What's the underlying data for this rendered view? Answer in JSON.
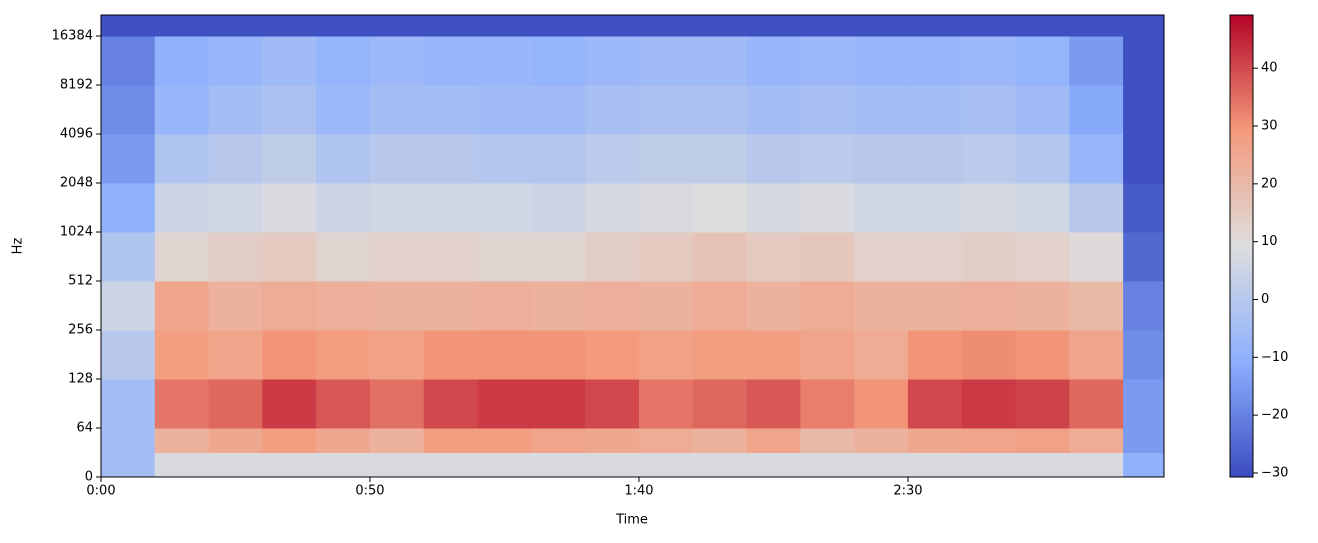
{
  "chart_data": {
    "type": "heatmap",
    "xlabel": "Time",
    "ylabel": "Hz",
    "colormap": "coolwarm",
    "yscale": "symlog",
    "linthresh": 64,
    "xlim": [
      0,
      197.6
    ],
    "ylim": [
      0,
      22050
    ],
    "clim": [
      -30.7,
      49.2
    ],
    "xticks": [
      {
        "value": 0,
        "label": "0:00"
      },
      {
        "value": 50,
        "label": "0:50"
      },
      {
        "value": 100,
        "label": "1:40"
      },
      {
        "value": 150,
        "label": "2:30"
      }
    ],
    "yticks": [
      0,
      64,
      128,
      256,
      512,
      1024,
      2048,
      4096,
      8192,
      16384
    ],
    "cticks": [
      {
        "value": -30,
        "label": "−30"
      },
      {
        "value": -20,
        "label": "−20"
      },
      {
        "value": -10,
        "label": "−10"
      },
      0,
      10,
      20,
      30,
      40
    ],
    "x_edges": [
      0,
      10,
      20,
      30,
      40,
      50,
      60,
      70,
      80,
      90,
      100,
      110,
      120,
      130,
      140,
      150,
      160,
      170,
      180,
      190,
      197.6
    ],
    "y_edges": [
      0,
      32,
      64,
      128,
      256,
      512,
      1024,
      2048,
      4096,
      8192,
      16384,
      22050
    ],
    "z": [
      [
        -5,
        8,
        8,
        8,
        8,
        8,
        8,
        8,
        8,
        8,
        8,
        8,
        8,
        8,
        8,
        8,
        8,
        8,
        8,
        -10
      ],
      [
        -5,
        22,
        25,
        28,
        25,
        22,
        28,
        28,
        26,
        25,
        24,
        22,
        26,
        20,
        22,
        25,
        26,
        27,
        24,
        -15
      ],
      [
        -5,
        34,
        36,
        42,
        38,
        35,
        40,
        42,
        42,
        40,
        34,
        36,
        38,
        33,
        30,
        40,
        42,
        41,
        36,
        -15
      ],
      [
        0,
        28,
        26,
        30,
        28,
        27,
        30,
        30,
        30,
        29,
        27,
        28,
        28,
        26,
        24,
        30,
        31,
        30,
        26,
        -18
      ],
      [
        5,
        26,
        22,
        24,
        23,
        22,
        22,
        23,
        22,
        23,
        22,
        24,
        22,
        24,
        22,
        22,
        23,
        22,
        20,
        -20
      ],
      [
        -2,
        12,
        14,
        15,
        12,
        13,
        13,
        12,
        12,
        14,
        15,
        17,
        15,
        16,
        13,
        13,
        14,
        13,
        10,
        -25
      ],
      [
        -10,
        5,
        6,
        8,
        5,
        6,
        6,
        6,
        5,
        7,
        8,
        9,
        7,
        8,
        6,
        6,
        7,
        6,
        0,
        -28
      ],
      [
        -15,
        -2,
        0,
        2,
        -2,
        0,
        0,
        -1,
        -1,
        1,
        2,
        2,
        0,
        1,
        0,
        0,
        1,
        -1,
        -8,
        -30
      ],
      [
        -18,
        -8,
        -5,
        -3,
        -7,
        -5,
        -5,
        -6,
        -6,
        -4,
        -3,
        -3,
        -5,
        -4,
        -5,
        -5,
        -4,
        -6,
        -12,
        -30
      ],
      [
        -20,
        -10,
        -8,
        -6,
        -9,
        -7,
        -8,
        -8,
        -9,
        -7,
        -6,
        -6,
        -8,
        -7,
        -8,
        -8,
        -7,
        -9,
        -15,
        -30
      ],
      [
        -30,
        -30,
        -30,
        -30,
        -30,
        -30,
        -30,
        -30,
        -30,
        -30,
        -30,
        -30,
        -30,
        -30,
        -30,
        -30,
        -30,
        -30,
        -30,
        -30
      ]
    ]
  }
}
